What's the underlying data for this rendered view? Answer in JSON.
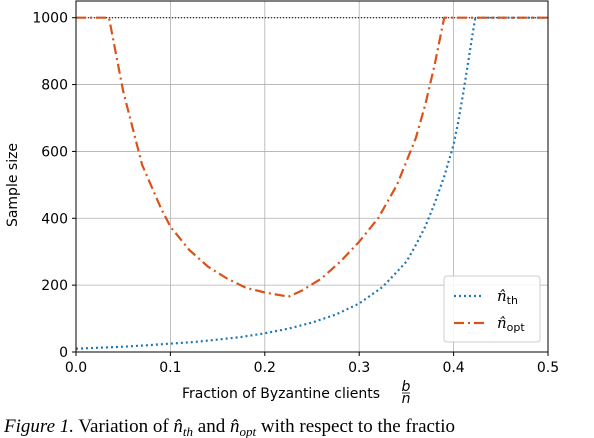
{
  "chart_data": {
    "type": "line",
    "xlabel": "Fraction of Byzantine clients",
    "xlabel_fraction": {
      "num": "b",
      "den": "n"
    },
    "ylabel": "Sample size",
    "xlim": [
      0.0,
      0.5
    ],
    "ylim": [
      0,
      1050
    ],
    "xticks": [
      0.0,
      0.1,
      0.2,
      0.3,
      0.4,
      0.5
    ],
    "xtick_labels": [
      "0.0",
      "0.1",
      "0.2",
      "0.3",
      "0.4",
      "0.5"
    ],
    "yticks": [
      0,
      200,
      400,
      600,
      800,
      1000
    ],
    "ytick_labels": [
      "0",
      "200",
      "400",
      "600",
      "800",
      "1000"
    ],
    "grid": true,
    "legend_position": "bottom-right",
    "reference_line": {
      "y": 1000,
      "style": "dotted",
      "color": "#000000"
    },
    "series": [
      {
        "name": "n̂th",
        "legend_base": "n̂",
        "legend_sub": "th",
        "style": "dotted",
        "color": "#1f77b4",
        "x": [
          0.0,
          0.025,
          0.05,
          0.075,
          0.1,
          0.125,
          0.15,
          0.175,
          0.2,
          0.225,
          0.25,
          0.275,
          0.3,
          0.325,
          0.35,
          0.36,
          0.37,
          0.38,
          0.39,
          0.4,
          0.405,
          0.41,
          0.415,
          0.42,
          0.423,
          0.45,
          0.5
        ],
        "y": [
          10,
          13,
          16,
          20,
          25,
          30,
          37,
          45,
          56,
          70,
          88,
          112,
          145,
          195,
          270,
          320,
          375,
          445,
          525,
          620,
          690,
          770,
          860,
          950,
          1000,
          1000,
          1000
        ]
      },
      {
        "name": "n̂opt",
        "legend_base": "n̂",
        "legend_sub": "opt",
        "style": "dashdot",
        "color": "#d95319",
        "x": [
          0.0,
          0.035,
          0.05,
          0.07,
          0.09,
          0.1,
          0.12,
          0.14,
          0.16,
          0.18,
          0.2,
          0.22,
          0.225,
          0.24,
          0.26,
          0.28,
          0.3,
          0.32,
          0.34,
          0.36,
          0.37,
          0.38,
          0.39,
          0.4,
          0.42,
          0.45,
          0.5
        ],
        "y": [
          1000,
          1000,
          780,
          560,
          430,
          375,
          305,
          255,
          220,
          192,
          178,
          168,
          165,
          185,
          220,
          270,
          330,
          400,
          500,
          640,
          740,
          860,
          1000,
          1000,
          1000,
          1000,
          1000
        ]
      }
    ]
  },
  "caption": {
    "figure_label": "Figure 1.",
    "text_prefix": " Variation of ",
    "sym_base": "n̂",
    "sym1_sub": "th",
    "text_and": " and ",
    "sym2_sub": "opt",
    "text_suffix": " with respect to the fractio"
  }
}
